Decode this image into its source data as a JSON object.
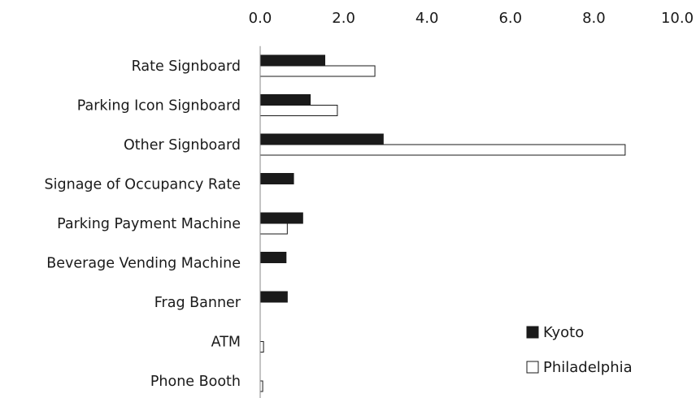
{
  "chart_data": {
    "type": "bar",
    "orientation": "horizontal",
    "categories": [
      "Rate Signboard",
      "Parking Icon Signboard",
      "Other Signboard",
      "Signage of Occupancy Rate",
      "Parking Payment Machine",
      "Beverage Vending Machine",
      "Frag Banner",
      "ATM",
      "Phone Booth"
    ],
    "series": [
      {
        "name": "Kyoto",
        "color": "#1a1a1a",
        "values": [
          1.55,
          1.2,
          2.95,
          0.8,
          1.02,
          0.62,
          0.65,
          0.0,
          0.0
        ]
      },
      {
        "name": "Philadelphia",
        "color": "#ffffff",
        "values": [
          2.75,
          1.85,
          8.75,
          0.0,
          0.65,
          0.0,
          0.0,
          0.08,
          0.06
        ]
      }
    ],
    "x_ticks": [
      "0.0",
      "2.0",
      "4.0",
      "6.0",
      "8.0",
      "10.0"
    ],
    "xlim": [
      0,
      10
    ],
    "x_axis_position": "top",
    "grid": false,
    "legend_position": "bottom-right",
    "title": "",
    "xlabel": "",
    "ylabel": ""
  }
}
